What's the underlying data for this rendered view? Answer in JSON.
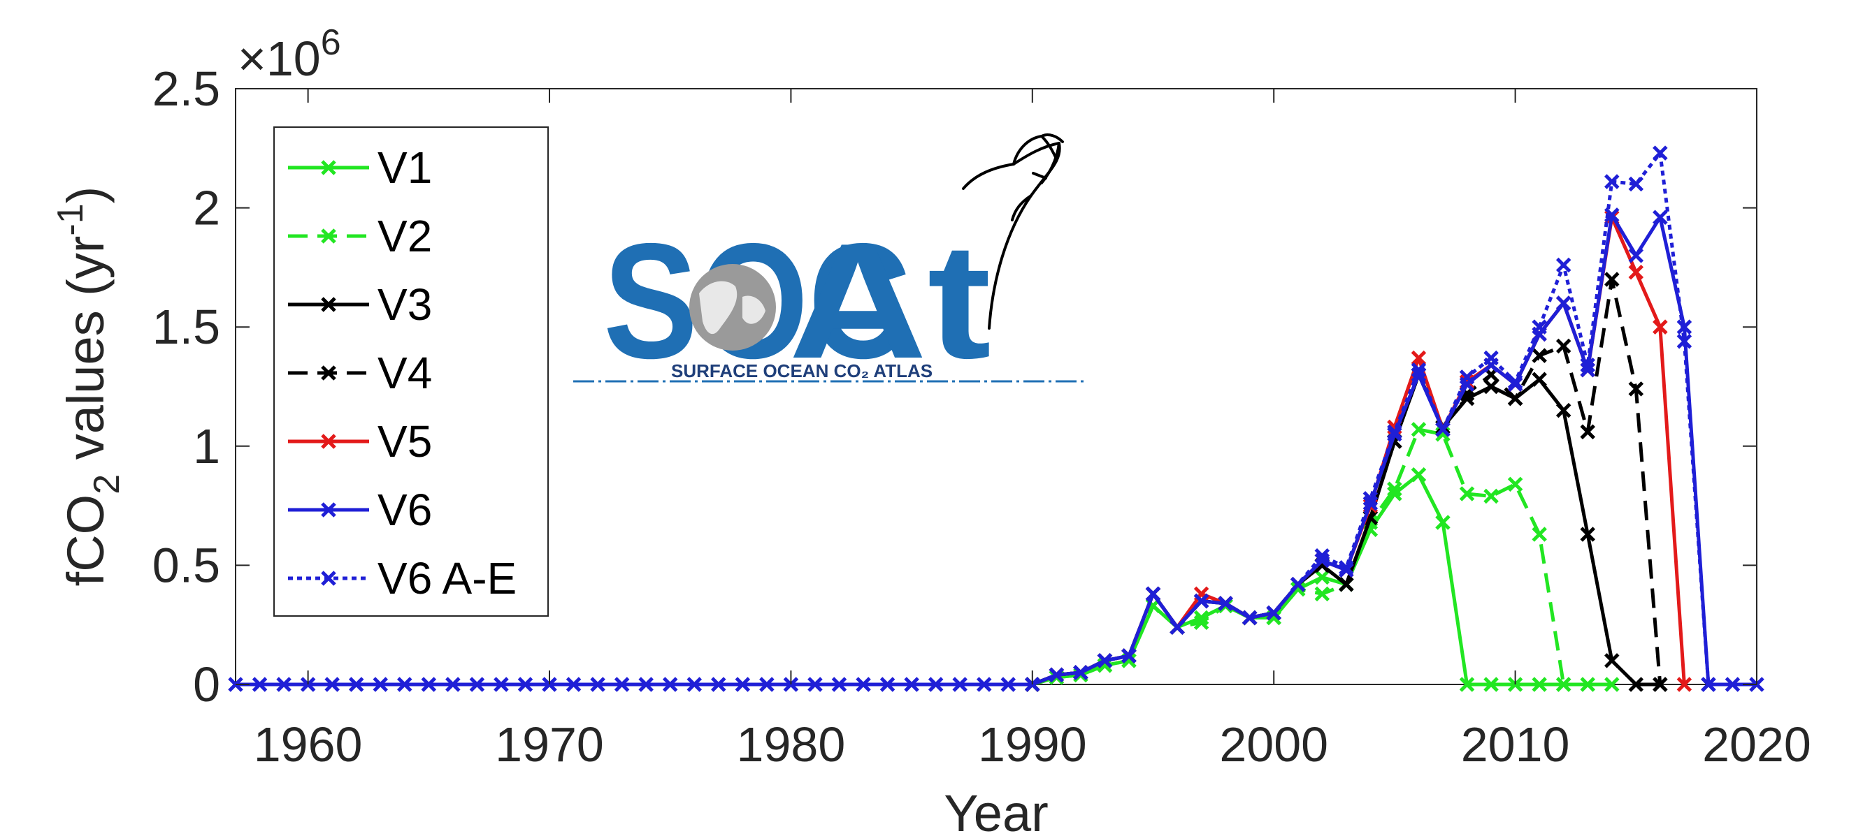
{
  "chart_data": {
    "type": "line",
    "title": "",
    "xlabel": "Year",
    "ylabel": "fCO",
    "ylabel_sub": "2",
    "ylabel_rest": " values (yr",
    "ylabel_sup": "-1",
    "ylabel_end": ")",
    "y_exponent_prefix": "×10",
    "y_exponent_power": "6",
    "xlim": [
      1957,
      2020
    ],
    "ylim": [
      0,
      2.5
    ],
    "x_ticks": [
      1960,
      1970,
      1980,
      1990,
      2000,
      2010,
      2020
    ],
    "y_ticks": [
      0,
      0.5,
      1,
      1.5,
      2,
      2.5
    ],
    "y_tick_labels": [
      "0",
      "0.5",
      "1",
      "1.5",
      "2",
      "2.5"
    ],
    "grid": false,
    "legend_position": "top-left",
    "series": [
      {
        "name": "V1",
        "color": "#22e622",
        "dash": "solid",
        "x": [
          1990,
          1991,
          1992,
          1993,
          1994,
          1995,
          1996,
          1997,
          1998,
          1999,
          2000,
          2001,
          2002,
          2003,
          2004,
          2005,
          2006,
          2007,
          2008,
          2009,
          2010,
          2011,
          2012,
          2013,
          2014
        ],
        "y": [
          0,
          0.03,
          0.04,
          0.08,
          0.1,
          0.33,
          0.24,
          0.28,
          0.33,
          0.28,
          0.28,
          0.4,
          0.45,
          0.42,
          0.65,
          0.8,
          0.88,
          0.68,
          0,
          0,
          0,
          0,
          0,
          0,
          0
        ]
      },
      {
        "name": "V2",
        "color": "#22e622",
        "dash": "dashed",
        "x": [
          1990,
          1991,
          1992,
          1993,
          1994,
          1995,
          1996,
          1997,
          1998,
          1999,
          2000,
          2001,
          2002,
          2003,
          2004,
          2005,
          2006,
          2007,
          2008,
          2009,
          2010,
          2011,
          2012
        ],
        "y": [
          0,
          0.03,
          0.04,
          0.08,
          0.1,
          0.33,
          0.24,
          0.26,
          0.33,
          0.28,
          0.28,
          0.4,
          0.38,
          0.42,
          0.68,
          0.82,
          1.07,
          1.05,
          0.8,
          0.79,
          0.84,
          0.63,
          0
        ]
      },
      {
        "name": "V3",
        "color": "#000000",
        "dash": "solid",
        "x": [
          1990,
          1991,
          1992,
          1993,
          1994,
          1995,
          1996,
          1997,
          1998,
          1999,
          2000,
          2001,
          2002,
          2003,
          2004,
          2005,
          2006,
          2007,
          2008,
          2009,
          2010,
          2011,
          2012,
          2013,
          2014,
          2015,
          2016
        ],
        "y": [
          0,
          0.04,
          0.05,
          0.1,
          0.12,
          0.38,
          0.24,
          0.35,
          0.34,
          0.28,
          0.3,
          0.42,
          0.5,
          0.42,
          0.7,
          1.02,
          1.3,
          1.08,
          1.2,
          1.25,
          1.2,
          1.28,
          1.15,
          0.63,
          0.1,
          0,
          0
        ]
      },
      {
        "name": "V4",
        "color": "#000000",
        "dash": "dashed",
        "x": [
          1990,
          1991,
          1992,
          1993,
          1994,
          1995,
          1996,
          1997,
          1998,
          1999,
          2000,
          2001,
          2002,
          2003,
          2004,
          2005,
          2006,
          2007,
          2008,
          2009,
          2010,
          2011,
          2012,
          2013,
          2014,
          2015,
          2016
        ],
        "y": [
          0,
          0.04,
          0.05,
          0.1,
          0.12,
          0.38,
          0.24,
          0.35,
          0.34,
          0.28,
          0.3,
          0.42,
          0.5,
          0.42,
          0.7,
          1.02,
          1.3,
          1.08,
          1.22,
          1.3,
          1.2,
          1.38,
          1.42,
          1.06,
          1.7,
          1.24,
          0
        ]
      },
      {
        "name": "V5",
        "color": "#e31a1a",
        "dash": "solid",
        "x": [
          1990,
          1991,
          1992,
          1993,
          1994,
          1995,
          1996,
          1997,
          1998,
          1999,
          2000,
          2001,
          2002,
          2003,
          2004,
          2005,
          2006,
          2007,
          2008,
          2009,
          2010,
          2011,
          2012,
          2013,
          2014,
          2015,
          2016,
          2017
        ],
        "y": [
          0,
          0.04,
          0.05,
          0.1,
          0.12,
          0.38,
          0.24,
          0.38,
          0.34,
          0.28,
          0.3,
          0.42,
          0.52,
          0.48,
          0.75,
          1.08,
          1.37,
          1.07,
          1.27,
          1.34,
          1.26,
          1.47,
          1.6,
          1.32,
          1.96,
          1.73,
          1.5,
          0
        ]
      },
      {
        "name": "V6",
        "color": "#1f1fd6",
        "dash": "solid",
        "x": [
          1957,
          1958,
          1959,
          1960,
          1961,
          1962,
          1963,
          1964,
          1965,
          1966,
          1967,
          1968,
          1969,
          1970,
          1971,
          1972,
          1973,
          1974,
          1975,
          1976,
          1977,
          1978,
          1979,
          1980,
          1981,
          1982,
          1983,
          1984,
          1985,
          1986,
          1987,
          1988,
          1989,
          1990,
          1991,
          1992,
          1993,
          1994,
          1995,
          1996,
          1997,
          1998,
          1999,
          2000,
          2001,
          2002,
          2003,
          2004,
          2005,
          2006,
          2007,
          2008,
          2009,
          2010,
          2011,
          2012,
          2013,
          2014,
          2015,
          2016,
          2017,
          2018,
          2019,
          2020
        ],
        "y": [
          0,
          0,
          0,
          0,
          0,
          0,
          0,
          0,
          0,
          0,
          0,
          0,
          0,
          0,
          0,
          0,
          0,
          0,
          0,
          0,
          0,
          0,
          0,
          0,
          0,
          0,
          0,
          0,
          0,
          0,
          0,
          0,
          0,
          0,
          0.04,
          0.05,
          0.1,
          0.12,
          0.38,
          0.24,
          0.35,
          0.34,
          0.28,
          0.3,
          0.42,
          0.52,
          0.48,
          0.76,
          1.05,
          1.3,
          1.07,
          1.26,
          1.34,
          1.26,
          1.47,
          1.6,
          1.32,
          1.97,
          1.8,
          1.96,
          1.5,
          0,
          0,
          0
        ]
      },
      {
        "name": "V6 A-E",
        "color": "#1f1fd6",
        "dash": "dotted",
        "x": [
          1990,
          1991,
          1992,
          1993,
          1994,
          1995,
          1996,
          1997,
          1998,
          1999,
          2000,
          2001,
          2002,
          2003,
          2004,
          2005,
          2006,
          2007,
          2008,
          2009,
          2010,
          2011,
          2012,
          2013,
          2014,
          2015,
          2016,
          2017,
          2018
        ],
        "y": [
          0,
          0.04,
          0.05,
          0.1,
          0.12,
          0.38,
          0.24,
          0.35,
          0.34,
          0.28,
          0.3,
          0.42,
          0.54,
          0.49,
          0.78,
          1.06,
          1.32,
          1.07,
          1.29,
          1.37,
          1.27,
          1.5,
          1.76,
          1.34,
          2.11,
          2.1,
          2.23,
          1.44,
          0
        ]
      }
    ]
  },
  "logo": {
    "wordmark_start": "SOC",
    "wordmark_end": "At",
    "tagline": "SURFACE OCEAN CO₂ ATLAS",
    "brand_color": "#1f6fb4"
  }
}
